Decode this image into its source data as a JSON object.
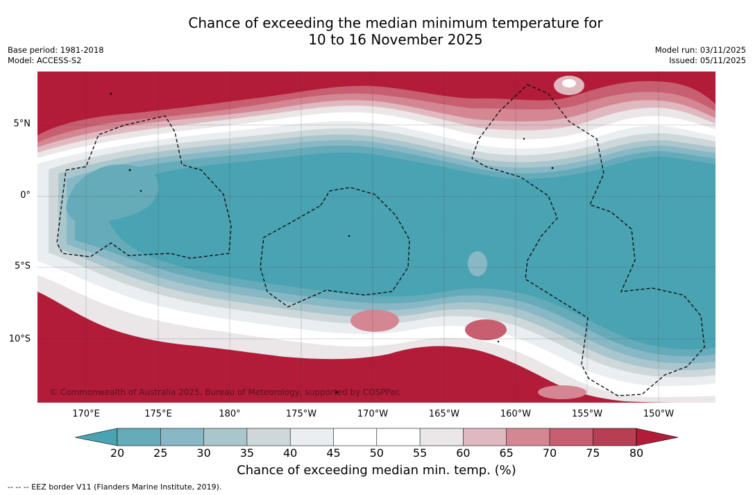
{
  "title": {
    "line1": "Chance of exceeding the median minimum temperature for",
    "line2": "10 to 16 November 2025"
  },
  "meta_left": {
    "base_period": "Base period: 1981-2018",
    "model": "Model: ACCESS-S2"
  },
  "meta_right": {
    "model_run": "Model run: 03/11/2025",
    "issued": "Issued: 05/11/2025"
  },
  "map": {
    "copyright": "© Commonwealth of Australia 2025, Bureau of Meteorology, supported by COSPPac",
    "longitude_labels": [
      "170°E",
      "175°E",
      "180°",
      "175°W",
      "170°W",
      "165°W",
      "160°W",
      "155°W",
      "150°W"
    ],
    "latitude_labels": [
      "5°N",
      "0°",
      "5°S",
      "10°S"
    ]
  },
  "colorbar": {
    "ticks": [
      "20",
      "25",
      "30",
      "35",
      "40",
      "45",
      "50",
      "55",
      "60",
      "65",
      "70",
      "75",
      "80"
    ],
    "colors": {
      "below_20": "#4aa3b2",
      "20_25": "#66abb9",
      "25_30": "#88b8c5",
      "30_35": "#aac6cd",
      "35_40": "#ced8db",
      "40_45": "#eaeef0",
      "45_50": "#ffffff",
      "50_55": "#ffffff",
      "55_60": "#ebe6e7",
      "60_65": "#e0b9c0",
      "65_70": "#d48793",
      "70_75": "#c85f70",
      "75_80": "#b73f53",
      "above_80": "#b21c38"
    },
    "label": "Chance of exceeding median min. temp. (%)"
  },
  "legend": {
    "eez": "--  --  -- EEZ border V11 (Flanders Marine Institute, 2019)."
  }
}
